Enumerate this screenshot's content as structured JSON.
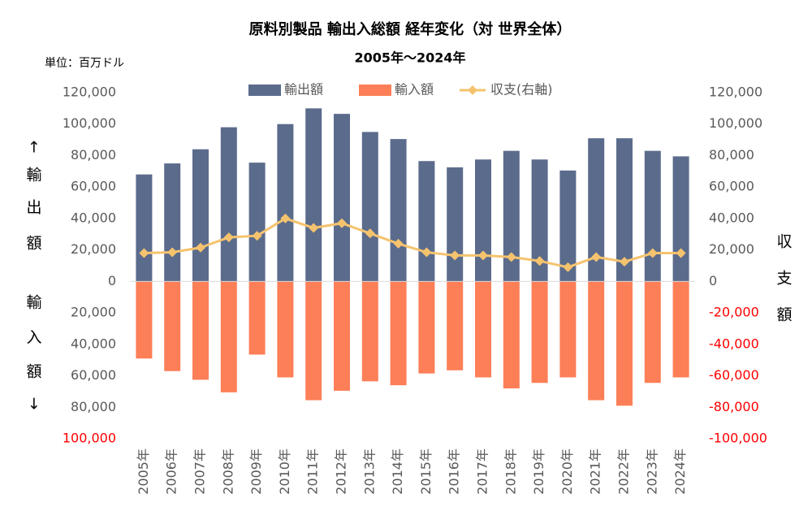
{
  "chart_data": {
    "type": "bar",
    "title": "原料別製品 輸出入総額 経年変化（対 世界全体）",
    "subtitle": "2005年～2024年",
    "unit_label": "単位：百万ドル",
    "ylabel": [
      "↑",
      "輸",
      "出",
      "額",
      "輸",
      "入",
      "額",
      "↓"
    ],
    "y2label": [
      "収",
      "支",
      "額"
    ],
    "categories": [
      "2005年",
      "2006年",
      "2007年",
      "2008年",
      "2009年",
      "2010年",
      "2011年",
      "2012年",
      "2013年",
      "2014年",
      "2015年",
      "2016年",
      "2017年",
      "2018年",
      "2019年",
      "2020年",
      "2021年",
      "2022年",
      "2023年",
      "2024年"
    ],
    "series": [
      {
        "name": "輸出額",
        "type": "bar",
        "color": "#5b6b8c",
        "values": [
          68000,
          75000,
          84000,
          98000,
          75500,
          100000,
          110000,
          106500,
          95000,
          90500,
          76500,
          72500,
          77500,
          83000,
          77500,
          70500,
          91000,
          91000,
          83000,
          79500
        ]
      },
      {
        "name": "輸入額",
        "type": "bar",
        "color": "#fd7f57",
        "values": [
          -49000,
          -57000,
          -62500,
          -70500,
          -46500,
          -61000,
          -75500,
          -69500,
          -63500,
          -66000,
          -58500,
          -56500,
          -61000,
          -68000,
          -64500,
          -61000,
          -75500,
          -79000,
          -64500,
          -61000
        ]
      },
      {
        "name": "収支(右軸)",
        "type": "line",
        "axis": "y2",
        "color": "#f5c36e",
        "values": [
          18000,
          18500,
          21500,
          28000,
          29000,
          40000,
          34000,
          37000,
          30500,
          24000,
          18500,
          16500,
          16500,
          15500,
          13000,
          9000,
          15500,
          12500,
          18000,
          18000
        ]
      }
    ],
    "ylim": [
      -100000,
      120000
    ],
    "yticks": [
      {
        "value": 120000,
        "label": "120,000"
      },
      {
        "value": 100000,
        "label": "100,000"
      },
      {
        "value": 80000,
        "label": "80,000"
      },
      {
        "value": 60000,
        "label": "60,000"
      },
      {
        "value": 40000,
        "label": "40,000"
      },
      {
        "value": 20000,
        "label": "20,000"
      },
      0,
      {
        "value": -20000,
        "label": "20,000"
      },
      {
        "value": -40000,
        "label": "40,000"
      },
      {
        "value": -60000,
        "label": "60,000"
      },
      {
        "value": -80000,
        "label": "80,000"
      },
      {
        "value": -100000,
        "label": "100,000",
        "color": "#ff0000"
      }
    ],
    "y2lim": [
      -100000,
      120000
    ],
    "y2ticks": [
      {
        "value": 120000,
        "label": "120,000"
      },
      {
        "value": 100000,
        "label": "100,000"
      },
      {
        "value": 80000,
        "label": "80,000"
      },
      {
        "value": 60000,
        "label": "60,000"
      },
      {
        "value": 40000,
        "label": "40,000"
      },
      {
        "value": 20000,
        "label": "20,000"
      },
      0,
      {
        "value": -20000,
        "label": "-20,000",
        "color": "#ff0000"
      },
      {
        "value": -40000,
        "label": "-40,000",
        "color": "#ff0000"
      },
      {
        "value": -60000,
        "label": "-60,000",
        "color": "#ff0000"
      },
      {
        "value": -80000,
        "label": "-80,000",
        "color": "#ff0000"
      },
      {
        "value": -100000,
        "label": "-100,000",
        "color": "#ff0000"
      }
    ],
    "grid": false
  }
}
